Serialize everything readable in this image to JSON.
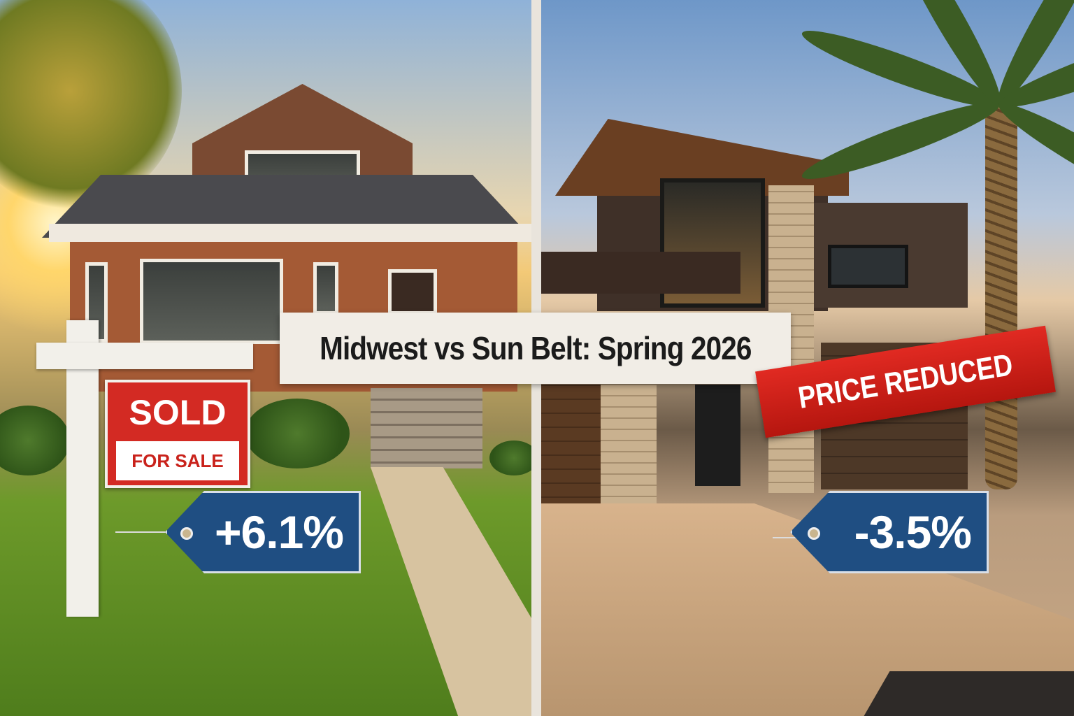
{
  "title": "Midwest vs Sun Belt: Spring 2026",
  "left_panel": {
    "sign": {
      "main": "SOLD",
      "sub": "FOR SALE"
    },
    "price_change": "+6.1%"
  },
  "right_panel": {
    "banner": "PRICE REDUCED",
    "price_change": "-3.5%"
  },
  "colors": {
    "sign_red": "#d32a23",
    "tag_blue": "#1f4e82",
    "banner_red": "#d1221b",
    "title_bg": "#f1ede6"
  }
}
